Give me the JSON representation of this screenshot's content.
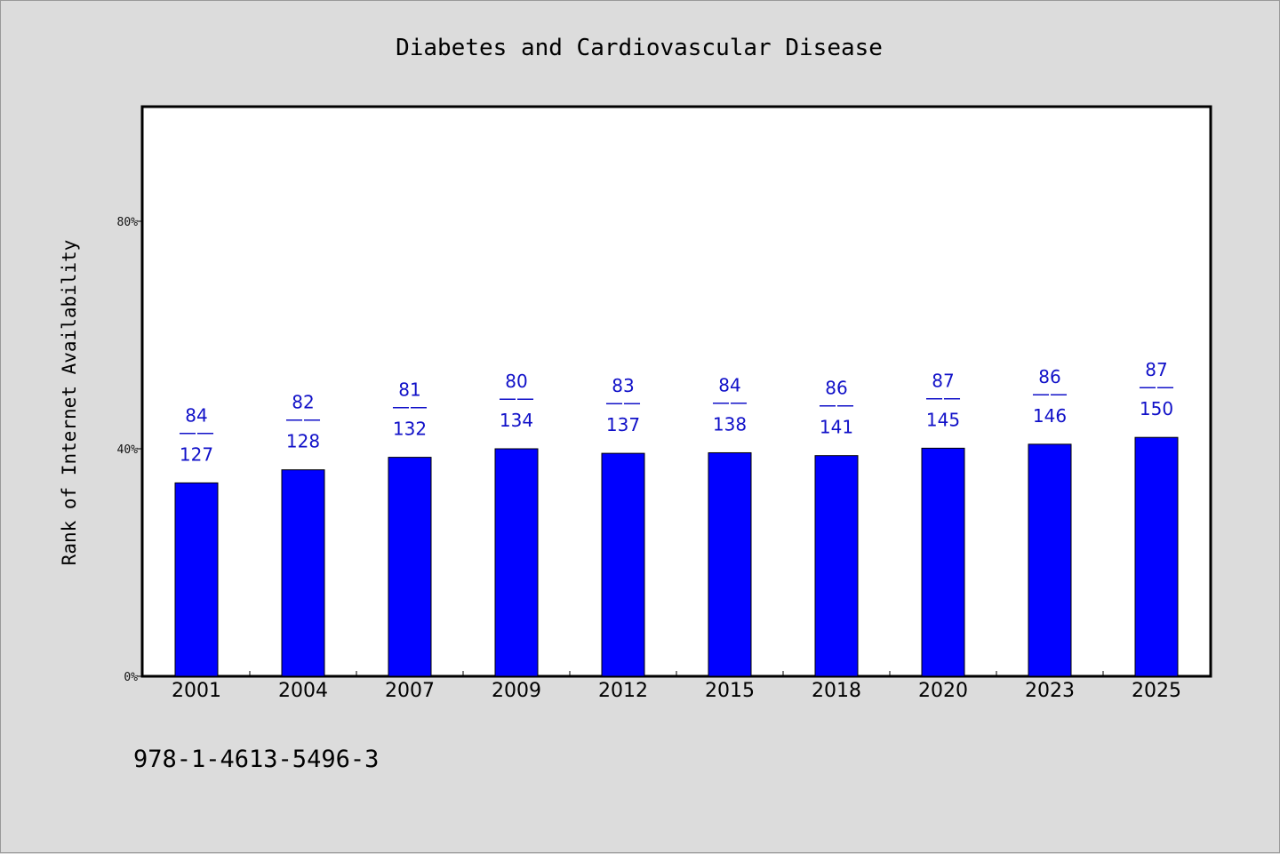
{
  "chart_data": {
    "type": "bar",
    "title": "Diabetes and Cardiovascular Disease",
    "ylabel": "Rank of Internet Availability",
    "xlabel": "",
    "categories": [
      "2001",
      "2004",
      "2007",
      "2009",
      "2012",
      "2015",
      "2018",
      "2020",
      "2023",
      "2025"
    ],
    "values": [
      34,
      36.3,
      38.5,
      40,
      39.2,
      39.3,
      38.8,
      40.1,
      40.8,
      42
    ],
    "value_unit": "%",
    "ylim": [
      0,
      100
    ],
    "yticks": [
      {
        "value": 0,
        "label": "0%"
      },
      {
        "value": 40,
        "label": "40%"
      },
      {
        "value": 80,
        "label": "80%"
      }
    ],
    "data_labels": [
      {
        "top": "84",
        "sep": "——",
        "bottom": "127"
      },
      {
        "top": "82",
        "sep": "——",
        "bottom": "128"
      },
      {
        "top": "81",
        "sep": "——",
        "bottom": "132"
      },
      {
        "top": "80",
        "sep": "——",
        "bottom": "134"
      },
      {
        "top": "83",
        "sep": "——",
        "bottom": "137"
      },
      {
        "top": "84",
        "sep": "——",
        "bottom": "138"
      },
      {
        "top": "86",
        "sep": "——",
        "bottom": "141"
      },
      {
        "top": "87",
        "sep": "——",
        "bottom": "145"
      },
      {
        "top": "86",
        "sep": "——",
        "bottom": "146"
      },
      {
        "top": "87",
        "sep": "——",
        "bottom": "150"
      }
    ],
    "grid": false,
    "legend": "none",
    "bar_color": "#0000ff",
    "label_color": "#1010c8"
  },
  "footer": {
    "isbn": "978-1-4613-5496-3"
  },
  "colors": {
    "background": "#dcdcdc",
    "plot_background": "#ffffff",
    "axis": "#000000"
  }
}
